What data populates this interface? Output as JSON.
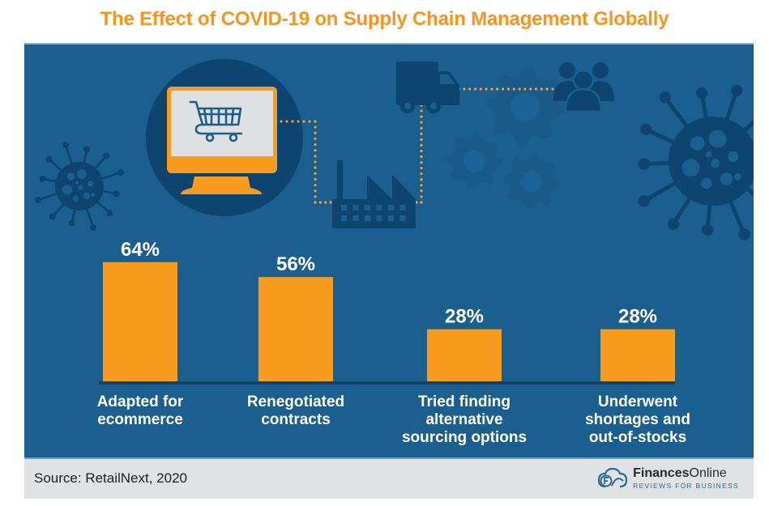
{
  "title": "The Effect of COVID-19 on Supply Chain Management Globally",
  "footer": {
    "source": "Source: RetailNext, 2020",
    "brand_bold": "Finances",
    "brand_light": "Online",
    "brand_tagline": "REVIEWS FOR BUSINESS"
  },
  "colors": {
    "title": "#f7941d",
    "panel": "#1b5f8f",
    "bar": "#f99b1c",
    "icon_dark": "#0e4470",
    "footer": "#e1e2e4"
  },
  "icons": [
    "shopping-cart-monitor",
    "factory",
    "truck",
    "gears",
    "people-group",
    "virus"
  ],
  "chart_data": {
    "type": "bar",
    "title": "The Effect of COVID-19 on Supply Chain Management Globally",
    "categories": [
      [
        "Adapted for",
        "ecommerce"
      ],
      [
        "Renegotiated",
        "contracts"
      ],
      [
        "Tried finding",
        "alternative",
        "sourcing options"
      ],
      [
        "Underwent",
        "shortages and",
        "out-of-stocks"
      ]
    ],
    "values": [
      64,
      56,
      28,
      28
    ],
    "labels": [
      "64%",
      "56%",
      "28%",
      "28%"
    ],
    "unit": "%",
    "xlabel": "",
    "ylabel": "",
    "ylim": [
      0,
      100
    ],
    "grid": false,
    "legend": "none",
    "source": "RetailNext, 2020"
  }
}
